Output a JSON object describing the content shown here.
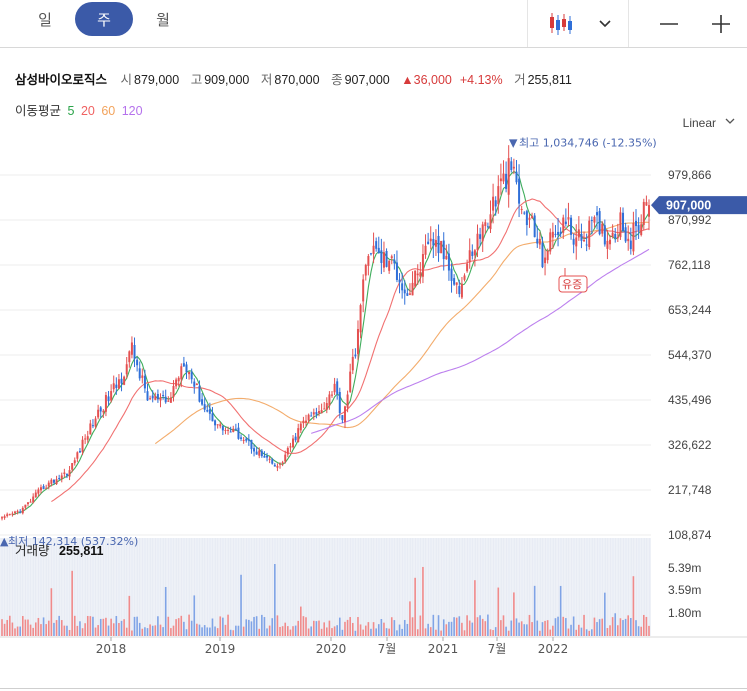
{
  "tabs": [
    "일",
    "주",
    "월"
  ],
  "active_tab": "주",
  "stock": {
    "name": "삼성바이오로직스",
    "open_label": "시",
    "open": "879,000",
    "high_label": "고",
    "high": "909,000",
    "low_label": "저",
    "low": "870,000",
    "close_label": "종",
    "close": "907,000",
    "change": "36,000",
    "change_pct": "+4.13%",
    "volume_label": "거",
    "volume": "255,811"
  },
  "ma": {
    "label": "이동평균",
    "periods": [
      "5",
      "20",
      "60",
      "120"
    ],
    "colors": [
      "#2ba44a",
      "#f06262",
      "#f2a35c",
      "#b572ec"
    ]
  },
  "scale_mode": "Linear",
  "colors": {
    "up": "#e45050",
    "down": "#2f6fd8",
    "accent": "#3b5aa8",
    "volume_bg": "#eef1f7"
  },
  "chart_data": {
    "type": "candlestick",
    "x_ticks": [
      "2018",
      "2019",
      "2020",
      "7월",
      "2021",
      "7월",
      "2022"
    ],
    "y_ticks": [
      "979,866",
      "870,992",
      "762,118",
      "653,244",
      "544,370",
      "435,496",
      "326,622",
      "217,748",
      "108,874"
    ],
    "ylim": [
      108874,
      1088740
    ],
    "current_price_label": "907,000",
    "current_price": 907000,
    "max_annotation": "최고 1,034,746 (-12.35%)",
    "max_value": 1034746,
    "min_annotation": "최저 142,314 (537.32%)",
    "min_value": 142314,
    "event_marker": "유증",
    "volume_title": "거래량",
    "volume_value": "255,811",
    "volume_ticks": [
      "5.39m",
      "3.59m",
      "1.80m"
    ],
    "key_points": [
      {
        "t": 0,
        "p": 148000
      },
      {
        "t": 8,
        "p": 172000
      },
      {
        "t": 16,
        "p": 225000
      },
      {
        "t": 26,
        "p": 265000
      },
      {
        "t": 36,
        "p": 395000
      },
      {
        "t": 46,
        "p": 490000
      },
      {
        "t": 50,
        "p": 560000
      },
      {
        "t": 56,
        "p": 440000
      },
      {
        "t": 64,
        "p": 430000
      },
      {
        "t": 70,
        "p": 535000
      },
      {
        "t": 78,
        "p": 415000
      },
      {
        "t": 84,
        "p": 370000
      },
      {
        "t": 92,
        "p": 350000
      },
      {
        "t": 100,
        "p": 300000
      },
      {
        "t": 106,
        "p": 270000
      },
      {
        "t": 110,
        "p": 310000
      },
      {
        "t": 116,
        "p": 385000
      },
      {
        "t": 122,
        "p": 405000
      },
      {
        "t": 128,
        "p": 470000
      },
      {
        "t": 131,
        "p": 390000
      },
      {
        "t": 136,
        "p": 560000
      },
      {
        "t": 141,
        "p": 805000
      },
      {
        "t": 146,
        "p": 780000
      },
      {
        "t": 151,
        "p": 760000
      },
      {
        "t": 156,
        "p": 690000
      },
      {
        "t": 161,
        "p": 760000
      },
      {
        "t": 166,
        "p": 820000
      },
      {
        "t": 171,
        "p": 780000
      },
      {
        "t": 176,
        "p": 700000
      },
      {
        "t": 181,
        "p": 800000
      },
      {
        "t": 186,
        "p": 860000
      },
      {
        "t": 191,
        "p": 940000
      },
      {
        "t": 196,
        "p": 1000000
      },
      {
        "t": 200,
        "p": 890000
      },
      {
        "t": 204,
        "p": 860000
      },
      {
        "t": 208,
        "p": 780000
      },
      {
        "t": 212,
        "p": 830000
      },
      {
        "t": 216,
        "p": 870000
      },
      {
        "t": 222,
        "p": 820000
      },
      {
        "t": 228,
        "p": 860000
      },
      {
        "t": 234,
        "p": 830000
      },
      {
        "t": 238,
        "p": 870000
      },
      {
        "t": 242,
        "p": 820000
      },
      {
        "t": 246,
        "p": 880000
      },
      {
        "t": 249,
        "p": 907000
      }
    ]
  }
}
